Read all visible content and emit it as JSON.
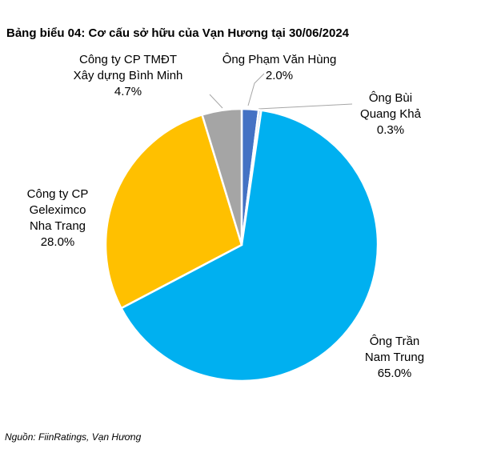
{
  "chart_data": {
    "type": "pie",
    "title": "Bảng biểu 04: Cơ cấu sở hữu của Vạn Hương tại 30/06/2024",
    "source": "Nguồn: FiinRatings, Vạn Hương",
    "categories": [
      [
        "Ông Phạm Văn Hùng"
      ],
      [
        "Ông Bùi",
        "Quang Khả"
      ],
      [
        "Ông Trần",
        "Nam Trung"
      ],
      [
        "Công ty CP",
        "Geleximco",
        "Nha Trang"
      ],
      [
        "Công ty CP TMĐT",
        "Xây dựng Bình Minh"
      ]
    ],
    "values": [
      2.0,
      0.3,
      65.0,
      28.0,
      4.7
    ],
    "value_labels": [
      "2.0%",
      "0.3%",
      "65.0%",
      "28.0%",
      "4.7%"
    ],
    "colors": [
      "#4472c4",
      "#9dc3e6",
      "#00b0f0",
      "#ffc000",
      "#a5a5a5"
    ]
  }
}
